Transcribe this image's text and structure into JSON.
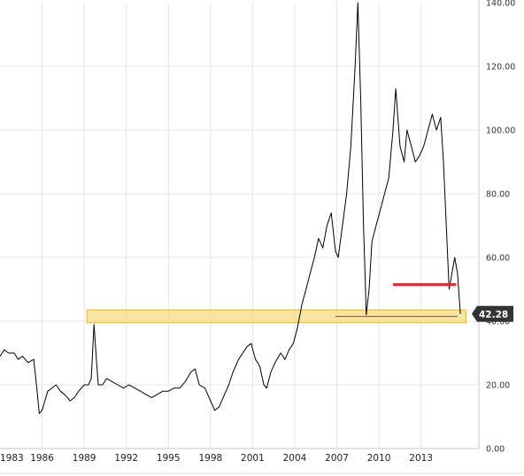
{
  "chart_data": {
    "type": "line",
    "title": "",
    "xlabel": "",
    "ylabel": "",
    "xlim": [
      1983.0,
      2016.3
    ],
    "ylim": [
      0,
      140
    ],
    "grid": true,
    "x_ticks": [
      "1983",
      "1986",
      "1989",
      "1992",
      "1995",
      "1998",
      "2001",
      "2004",
      "2007",
      "2010",
      "2013"
    ],
    "y_ticks": [
      "0.00",
      "20.00",
      "40.00",
      "60.00",
      "80.00",
      "100.00",
      "120.00",
      "140.00"
    ],
    "last_value_label": "42.28",
    "support_band": {
      "low": 39.5,
      "high": 43.5,
      "x_start": 1989.2,
      "x_end": 2016.2,
      "color": "#f5dc82"
    },
    "resistance_line": {
      "y": 51.5,
      "x_start": 2011.0,
      "x_end": 2015.5,
      "color": "#e8232a"
    },
    "support_line": {
      "y": 41.5,
      "x_start": 2006.9,
      "x_end": 2015.6,
      "color": "#b0304a"
    },
    "series": [
      {
        "color": "#000000",
        "points": [
          [
            1983.0,
            29
          ],
          [
            1983.3,
            31
          ],
          [
            1983.6,
            30
          ],
          [
            1984.0,
            30
          ],
          [
            1984.3,
            28
          ],
          [
            1984.6,
            29
          ],
          [
            1985.0,
            27
          ],
          [
            1985.4,
            28
          ],
          [
            1985.6,
            20
          ],
          [
            1985.8,
            11
          ],
          [
            1986.0,
            12
          ],
          [
            1986.2,
            15
          ],
          [
            1986.4,
            18
          ],
          [
            1986.7,
            19
          ],
          [
            1987.0,
            20
          ],
          [
            1987.3,
            18
          ],
          [
            1987.6,
            17
          ],
          [
            1988.0,
            15
          ],
          [
            1988.3,
            16
          ],
          [
            1988.6,
            18
          ],
          [
            1989.0,
            20
          ],
          [
            1989.3,
            20
          ],
          [
            1989.5,
            22
          ],
          [
            1989.7,
            39
          ],
          [
            1989.9,
            26
          ],
          [
            1990.0,
            20
          ],
          [
            1990.3,
            20
          ],
          [
            1990.6,
            22
          ],
          [
            1991.0,
            21
          ],
          [
            1991.4,
            20
          ],
          [
            1991.8,
            19
          ],
          [
            1992.2,
            20
          ],
          [
            1992.6,
            19
          ],
          [
            1993.0,
            18
          ],
          [
            1993.4,
            17
          ],
          [
            1993.8,
            16
          ],
          [
            1994.2,
            17
          ],
          [
            1994.6,
            18
          ],
          [
            1995.0,
            18
          ],
          [
            1995.4,
            19
          ],
          [
            1995.8,
            19
          ],
          [
            1996.2,
            21
          ],
          [
            1996.6,
            24
          ],
          [
            1996.9,
            25
          ],
          [
            1997.2,
            20
          ],
          [
            1997.6,
            19
          ],
          [
            1998.0,
            15
          ],
          [
            1998.3,
            12
          ],
          [
            1998.6,
            13
          ],
          [
            1999.0,
            17
          ],
          [
            1999.3,
            20
          ],
          [
            1999.6,
            24
          ],
          [
            2000.0,
            28
          ],
          [
            2000.3,
            30
          ],
          [
            2000.6,
            32
          ],
          [
            2000.9,
            33
          ],
          [
            2001.2,
            28
          ],
          [
            2001.5,
            26
          ],
          [
            2001.8,
            20
          ],
          [
            2002.0,
            19
          ],
          [
            2002.3,
            24
          ],
          [
            2002.6,
            27
          ],
          [
            2003.0,
            30
          ],
          [
            2003.3,
            28
          ],
          [
            2003.6,
            31
          ],
          [
            2003.9,
            33
          ],
          [
            2004.2,
            38
          ],
          [
            2004.5,
            45
          ],
          [
            2004.8,
            50
          ],
          [
            2005.1,
            55
          ],
          [
            2005.4,
            60
          ],
          [
            2005.7,
            66
          ],
          [
            2006.0,
            63
          ],
          [
            2006.3,
            70
          ],
          [
            2006.6,
            74
          ],
          [
            2006.9,
            62
          ],
          [
            2007.1,
            60
          ],
          [
            2007.4,
            70
          ],
          [
            2007.7,
            80
          ],
          [
            2008.0,
            95
          ],
          [
            2008.3,
            120
          ],
          [
            2008.5,
            140
          ],
          [
            2008.7,
            110
          ],
          [
            2008.9,
            70
          ],
          [
            2009.1,
            42
          ],
          [
            2009.3,
            50
          ],
          [
            2009.5,
            65
          ],
          [
            2009.8,
            70
          ],
          [
            2010.1,
            75
          ],
          [
            2010.4,
            80
          ],
          [
            2010.7,
            85
          ],
          [
            2011.0,
            100
          ],
          [
            2011.2,
            113
          ],
          [
            2011.5,
            95
          ],
          [
            2011.8,
            90
          ],
          [
            2012.0,
            100
          ],
          [
            2012.3,
            95
          ],
          [
            2012.6,
            90
          ],
          [
            2012.9,
            92
          ],
          [
            2013.2,
            95
          ],
          [
            2013.5,
            100
          ],
          [
            2013.8,
            105
          ],
          [
            2014.1,
            100
          ],
          [
            2014.4,
            104
          ],
          [
            2014.6,
            90
          ],
          [
            2014.8,
            70
          ],
          [
            2015.0,
            50
          ],
          [
            2015.2,
            55
          ],
          [
            2015.4,
            60
          ],
          [
            2015.6,
            55
          ],
          [
            2015.8,
            42.28
          ]
        ]
      }
    ]
  }
}
